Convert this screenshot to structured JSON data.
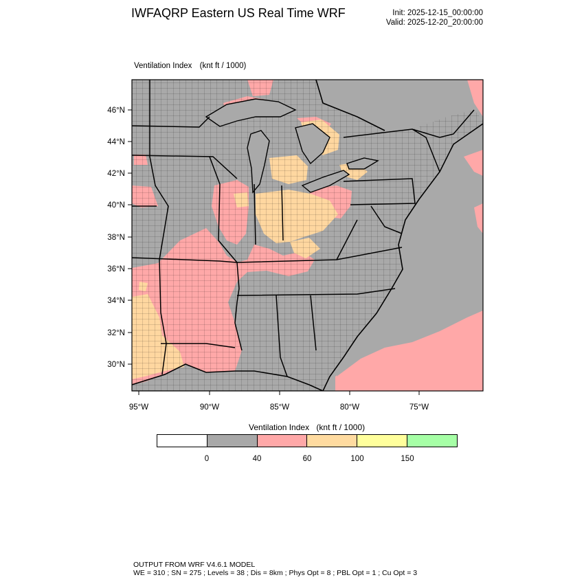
{
  "header": {
    "title": "IWFAQRP Eastern US Real Time WRF",
    "init": "Init: 2025-12-15_00:00:00",
    "valid": "Valid: 2025-12-20_20:00:00"
  },
  "map": {
    "field_label": "Ventilation Index",
    "units_label": "(knt ft / 1000)",
    "lat_ticks": [
      "46°N",
      "44°N",
      "42°N",
      "40°N",
      "38°N",
      "36°N",
      "34°N",
      "32°N",
      "30°N"
    ],
    "lon_ticks": [
      "95°W",
      "90°W",
      "85°W",
      "80°W",
      "75°W"
    ],
    "colors": {
      "land_low": "#a9a9a9",
      "vi_40_60": "#ffa8a8",
      "vi_60_100": "#ffd7a0",
      "ocean": "#a9a9a9",
      "outline": "#000000"
    }
  },
  "legend": {
    "title": "Ventilation Index",
    "units": "(knt ft / 1000)",
    "bins": [
      {
        "color": "#ffffff"
      },
      {
        "color": "#a8a8a8"
      },
      {
        "color": "#ffa8a8"
      },
      {
        "color": "#ffdba0"
      },
      {
        "color": "#ffff9c"
      },
      {
        "color": "#a6ffa6"
      }
    ],
    "labels": [
      "0",
      "40",
      "60",
      "100",
      "150"
    ]
  },
  "footer": {
    "line1": "OUTPUT FROM WRF V4.6.1 MODEL",
    "line2": "WE = 310 ; SN = 275 ; Levels = 38 ; Dis = 8km ; Phys Opt = 8 ; PBL Opt = 1 ; Cu Opt = 3"
  }
}
